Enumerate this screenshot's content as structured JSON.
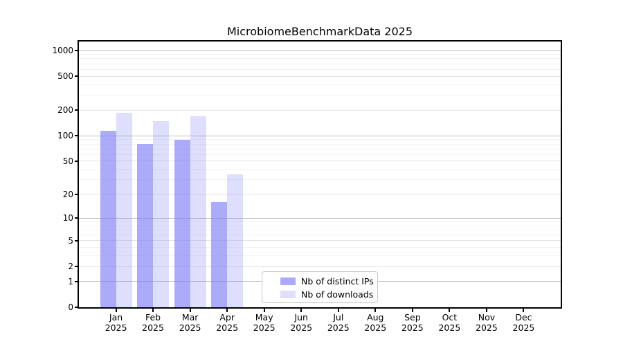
{
  "chart_data": {
    "type": "bar",
    "title": "MicrobiomeBenchmarkData 2025",
    "categories": [
      "Jan",
      "Feb",
      "Mar",
      "Apr",
      "May",
      "Jun",
      "Jul",
      "Aug",
      "Sep",
      "Oct",
      "Nov",
      "Dec"
    ],
    "year": "2025",
    "series": [
      {
        "name": "Nb of distinct IPs",
        "color": "rgba(128,128,246,0.66)",
        "values": [
          114,
          80,
          90,
          16,
          null,
          null,
          null,
          null,
          null,
          null,
          null,
          null
        ]
      },
      {
        "name": "Nb of downloads",
        "color": "rgba(128,128,246,0.26)",
        "values": [
          185,
          148,
          170,
          35,
          null,
          null,
          null,
          null,
          null,
          null,
          null,
          null
        ]
      }
    ],
    "ylabel": "",
    "xlabel": "",
    "y_ticks": [
      0,
      1,
      2,
      5,
      10,
      20,
      50,
      100,
      200,
      500,
      1000
    ],
    "y_scale": "log1p",
    "ylim": [
      0,
      1280
    ],
    "grid": "horizontal, log minor + major",
    "legend_position": "inside lower-center-left"
  },
  "colors": {
    "grid_major": "#bdbdbd",
    "grid_minor_labeled": "#e4e4e4",
    "grid_minor": "#f2f2f2",
    "spine": "#000000",
    "legend_border": "#c9c9c9",
    "background": "#ffffff"
  }
}
